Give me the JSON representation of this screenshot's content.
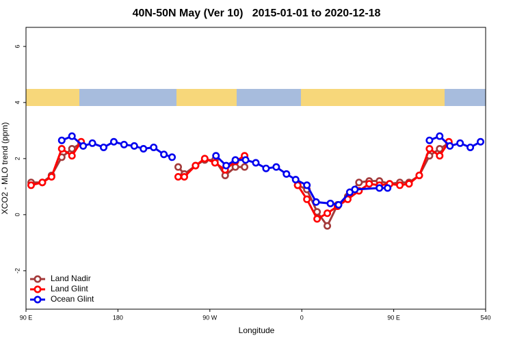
{
  "chart_data": {
    "type": "line",
    "title": "40N-50N May (Ver 10)   2015-01-01 to 2020-12-18",
    "xlabel": "Longitude",
    "ylabel": "XCO2 - MLO trend (ppm)",
    "xlim": [
      90,
      540
    ],
    "ylim": [
      -3.37,
      6.68
    ],
    "xticks": [
      {
        "value": 90,
        "label": "90 E"
      },
      180,
      {
        "value": 270,
        "label": "90 W"
      },
      {
        "value": 360,
        "label": "0"
      },
      {
        "value": 450,
        "label": "90 E"
      },
      540
    ],
    "yticks": [
      -2,
      0,
      2,
      4,
      6
    ],
    "legend": "lower left",
    "series": [
      {
        "name": "Land Nadir",
        "color": "#a33a3a",
        "x": [
          95,
          106,
          115,
          125,
          135,
          144,
          null,
          239,
          245,
          256,
          265,
          275,
          285,
          295,
          304,
          null,
          356,
          365,
          375,
          385,
          395,
          405,
          416,
          426,
          436,
          446,
          456,
          465,
          475,
          485,
          495,
          504
        ],
        "values": [
          1.15,
          1.15,
          1.4,
          2.05,
          2.35,
          2.55,
          null,
          1.7,
          1.45,
          1.75,
          1.95,
          1.95,
          1.4,
          1.7,
          1.7,
          null,
          1.05,
          0.9,
          0.1,
          -0.4,
          0.35,
          0.65,
          1.15,
          1.2,
          1.2,
          1.1,
          1.15,
          1.15,
          1.4,
          2.1,
          2.35,
          2.55
        ]
      },
      {
        "name": "Land Glint",
        "color": "#ff0000",
        "x": [
          95,
          106,
          115,
          125,
          135,
          144,
          null,
          239,
          245,
          256,
          265,
          275,
          285,
          295,
          304,
          null,
          356,
          365,
          375,
          385,
          395,
          405,
          416,
          426,
          436,
          446,
          456,
          465,
          475,
          485,
          495,
          504
        ],
        "values": [
          1.05,
          1.15,
          1.35,
          2.35,
          2.1,
          2.6,
          null,
          1.35,
          1.35,
          1.75,
          2.0,
          1.85,
          1.6,
          1.9,
          2.1,
          null,
          1.05,
          0.55,
          -0.15,
          0.05,
          0.3,
          0.55,
          0.85,
          1.1,
          1.05,
          1.1,
          1.05,
          1.1,
          1.4,
          2.35,
          2.1,
          2.6
        ]
      },
      {
        "name": "Ocean Glint",
        "color": "#0000ee",
        "x": [
          125,
          135,
          146,
          155,
          166,
          176,
          186,
          196,
          205,
          215,
          225,
          233,
          null,
          276,
          286,
          295,
          305,
          315,
          325,
          335,
          345,
          354,
          365,
          374,
          388,
          396,
          407,
          412,
          436,
          444,
          null,
          485,
          495,
          505,
          515,
          525,
          535
        ],
        "values": [
          2.65,
          2.8,
          2.45,
          2.55,
          2.4,
          2.6,
          2.5,
          2.45,
          2.35,
          2.4,
          2.15,
          2.05,
          null,
          2.1,
          1.75,
          1.95,
          1.95,
          1.85,
          1.65,
          1.7,
          1.45,
          1.25,
          1.05,
          0.45,
          0.4,
          0.35,
          0.8,
          0.9,
          0.95,
          0.95,
          null,
          2.65,
          2.8,
          2.45,
          2.55,
          2.4,
          2.6
        ]
      }
    ]
  }
}
